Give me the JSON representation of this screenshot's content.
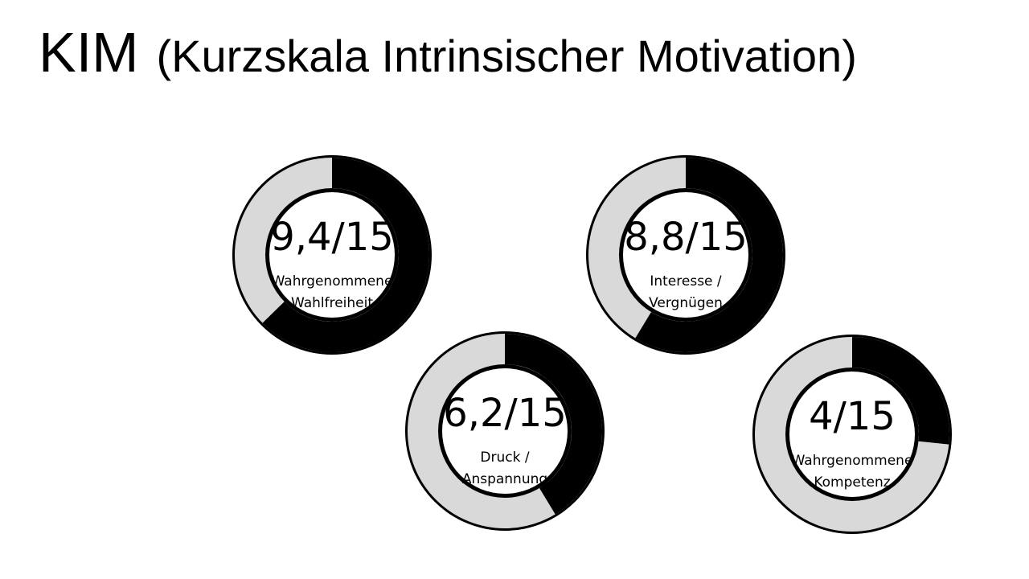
{
  "title": {
    "abbreviation": "KIM",
    "full": "(Kurzskala Intrinsischer Motivation)"
  },
  "colors": {
    "filled": "#000000",
    "remaining": "#d9d9d9",
    "outline": "#000000",
    "background": "#ffffff"
  },
  "chart_data": [
    {
      "type": "pie",
      "value": 9.4,
      "max": 15,
      "value_label": "9,4/15",
      "label_lines": [
        "Wahrgenommene",
        "Wahlfreiheit"
      ]
    },
    {
      "type": "pie",
      "value": 8.8,
      "max": 15,
      "value_label": "8,8/15",
      "label_lines": [
        "Interesse /",
        "Vergnügen"
      ]
    },
    {
      "type": "pie",
      "value": 6.2,
      "max": 15,
      "value_label": "6,2/15",
      "label_lines": [
        "Druck /",
        "Anspannung"
      ]
    },
    {
      "type": "pie",
      "value": 4,
      "max": 15,
      "value_label": "4/15",
      "label_lines": [
        "Wahrgenommene",
        "Kompetenz"
      ]
    }
  ]
}
